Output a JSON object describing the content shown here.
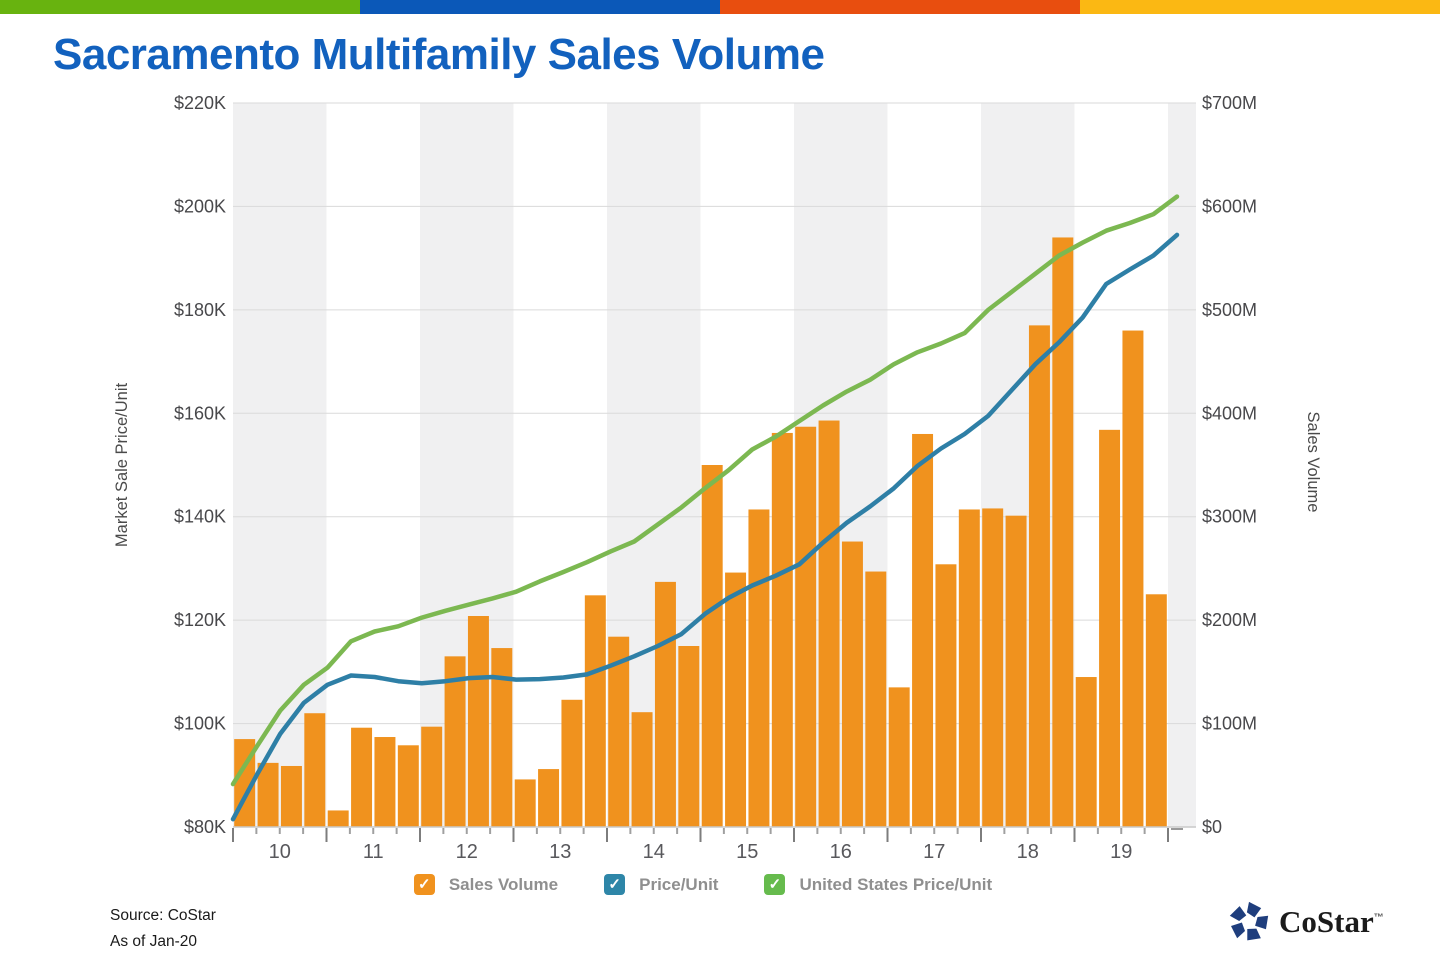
{
  "header": {
    "stripe_colors": [
      "#68B30F",
      "#0B58B8",
      "#E84E0F",
      "#FBB813"
    ],
    "title": "Sacramento Multifamily Sales Volume",
    "title_color": "#1261BE"
  },
  "chart_data": {
    "type": "combo-bar-line",
    "title": "Sacramento Multifamily Sales Volume",
    "x_axis": {
      "years": [
        "10",
        "11",
        "12",
        "13",
        "14",
        "15",
        "16",
        "17",
        "18",
        "19"
      ],
      "points_per_year": 4,
      "period": "quarterly 2010 through Jan-2020"
    },
    "left_axis": {
      "title": "Market Sale Price/Unit",
      "unit": "USD thousands per unit",
      "min": 80,
      "max": 220,
      "tick_labels": [
        "$220K",
        "$200K",
        "$180K",
        "$160K",
        "$140K",
        "$120K",
        "$100K",
        "$80K"
      ]
    },
    "right_axis": {
      "title": "Sales Volume",
      "unit": "USD millions per quarter",
      "min": 0,
      "max": 700,
      "tick_labels": [
        "$700M",
        "$600M",
        "$500M",
        "$400M",
        "$300M",
        "$200M",
        "$100M",
        "$0"
      ]
    },
    "bars": {
      "name": "Sales Volume",
      "color": "#F0921E",
      "axis": "right",
      "unit": "USD millions",
      "values": [
        85,
        62,
        59,
        110,
        16,
        96,
        87,
        79,
        97,
        165,
        204,
        173,
        46,
        56,
        123,
        224,
        184,
        111,
        237,
        175,
        350,
        246,
        307,
        381,
        387,
        393,
        276,
        247,
        135,
        380,
        254,
        307,
        308,
        301,
        485,
        570,
        145,
        384,
        480,
        225
      ]
    },
    "lines": [
      {
        "name": "Price/Unit",
        "color": "#2E7FA6",
        "axis": "left",
        "unit": "USD thousands",
        "values": [
          81.5,
          90,
          98,
          104,
          107.5,
          109.3,
          109,
          108.2,
          107.8,
          108.2,
          108.8,
          109,
          108.5,
          108.6,
          108.9,
          109.5,
          111.2,
          113,
          115,
          117.3,
          121.2,
          124.3,
          126.7,
          128.6,
          130.8,
          135,
          138.8,
          142,
          145.5,
          149.8,
          153.2,
          156,
          159.5,
          164.5,
          169.5,
          173.7,
          178.5,
          185,
          187.8,
          190.5,
          194.5
        ]
      },
      {
        "name": "United States Price/Unit",
        "color": "#7CB851",
        "axis": "left",
        "unit": "USD thousands",
        "values": [
          88.3,
          95.5,
          102.5,
          107.5,
          110.8,
          115.9,
          117.8,
          118.8,
          120.5,
          121.8,
          123,
          124.2,
          125.5,
          127.5,
          129.3,
          131.2,
          133.3,
          135.2,
          138.5,
          141.8,
          145.5,
          149,
          153,
          155.5,
          158.5,
          161.5,
          164.2,
          166.5,
          169.5,
          171.8,
          173.5,
          175.5,
          180,
          183.5,
          187,
          190.5,
          193,
          195.3,
          196.8,
          198.5,
          201.9
        ]
      }
    ],
    "style": {
      "band_color": "#F0F0F1",
      "gridline_color": "#DADADA",
      "tick_color": "#8A8A8A",
      "axis_label_color": "#48484B",
      "axis_title_color": "#4A4A4A"
    }
  },
  "legend": {
    "items": [
      {
        "label": "Sales Volume",
        "color": "#F0921E",
        "checked": true
      },
      {
        "label": "Price/Unit",
        "color": "#2E86A8",
        "checked": true
      },
      {
        "label": "United States Price/Unit",
        "color": "#66BB4D",
        "checked": true
      }
    ],
    "check_glyph": "✓"
  },
  "footer": {
    "source": "Source: CoStar",
    "as_of": "As of Jan-20"
  },
  "logo": {
    "text": "CoStar",
    "tm": "™",
    "icon_color": "#1F3E7D"
  }
}
